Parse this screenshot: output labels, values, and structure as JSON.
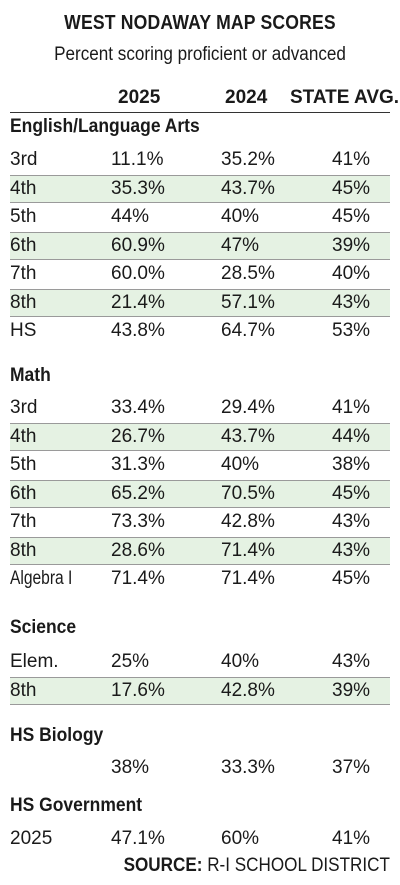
{
  "title": "WEST NODAWAY MAP SCORES",
  "subtitle": "Percent scoring proficient or advanced",
  "columns": [
    "2025",
    "2024",
    "STATE AVG."
  ],
  "source_label": "SOURCE:",
  "source_text": "R-I SCHOOL DISTRICT",
  "colors": {
    "row_shade": "#e5f2e3",
    "rule": "#9a9a9a",
    "text": "#1a1a1a"
  },
  "chart_data": {
    "type": "table",
    "title": "WEST NODAWAY MAP SCORES",
    "subtitle": "Percent scoring proficient or advanced",
    "columns": [
      "2025",
      "2024",
      "STATE AVG."
    ],
    "sections": [
      {
        "name": "English/Language Arts",
        "rows": [
          {
            "label": "3rd",
            "v2025": "11.1%",
            "v2024": "35.2%",
            "state": "41%"
          },
          {
            "label": "4th",
            "v2025": "35.3%",
            "v2024": "43.7%",
            "state": "45%"
          },
          {
            "label": "5th",
            "v2025": "44%",
            "v2024": "40%",
            "state": "45%"
          },
          {
            "label": "6th",
            "v2025": "60.9%",
            "v2024": "47%",
            "state": "39%"
          },
          {
            "label": "7th",
            "v2025": "60.0%",
            "v2024": "28.5%",
            "state": "40%"
          },
          {
            "label": "8th",
            "v2025": "21.4%",
            "v2024": "57.1%",
            "state": "43%"
          },
          {
            "label": "HS",
            "v2025": "43.8%",
            "v2024": "64.7%",
            "state": "53%"
          }
        ]
      },
      {
        "name": "Math",
        "rows": [
          {
            "label": "3rd",
            "v2025": "33.4%",
            "v2024": "29.4%",
            "state": "41%"
          },
          {
            "label": "4th",
            "v2025": "26.7%",
            "v2024": "43.7%",
            "state": "44%"
          },
          {
            "label": "5th",
            "v2025": "31.3%",
            "v2024": "40%",
            "state": "38%"
          },
          {
            "label": "6th",
            "v2025": "65.2%",
            "v2024": "70.5%",
            "state": "45%"
          },
          {
            "label": "7th",
            "v2025": "73.3%",
            "v2024": "42.8%",
            "state": "43%"
          },
          {
            "label": "8th",
            "v2025": "28.6%",
            "v2024": "71.4%",
            "state": "43%"
          },
          {
            "label": "Algebra I",
            "v2025": "71.4%",
            "v2024": "71.4%",
            "state": "45%"
          }
        ]
      },
      {
        "name": "Science",
        "rows": [
          {
            "label": "Elem.",
            "v2025": "25%",
            "v2024": "40%",
            "state": "43%"
          },
          {
            "label": "8th",
            "v2025": "17.6%",
            "v2024": "42.8%",
            "state": "39%"
          }
        ]
      },
      {
        "name": "HS Biology",
        "rows": [
          {
            "label": "",
            "v2025": "38%",
            "v2024": "33.3%",
            "state": "37%"
          }
        ]
      },
      {
        "name": "HS Government",
        "rows": [
          {
            "label": "2025",
            "v2025": "47.1%",
            "v2024": "60%",
            "state": "41%"
          }
        ]
      }
    ]
  }
}
